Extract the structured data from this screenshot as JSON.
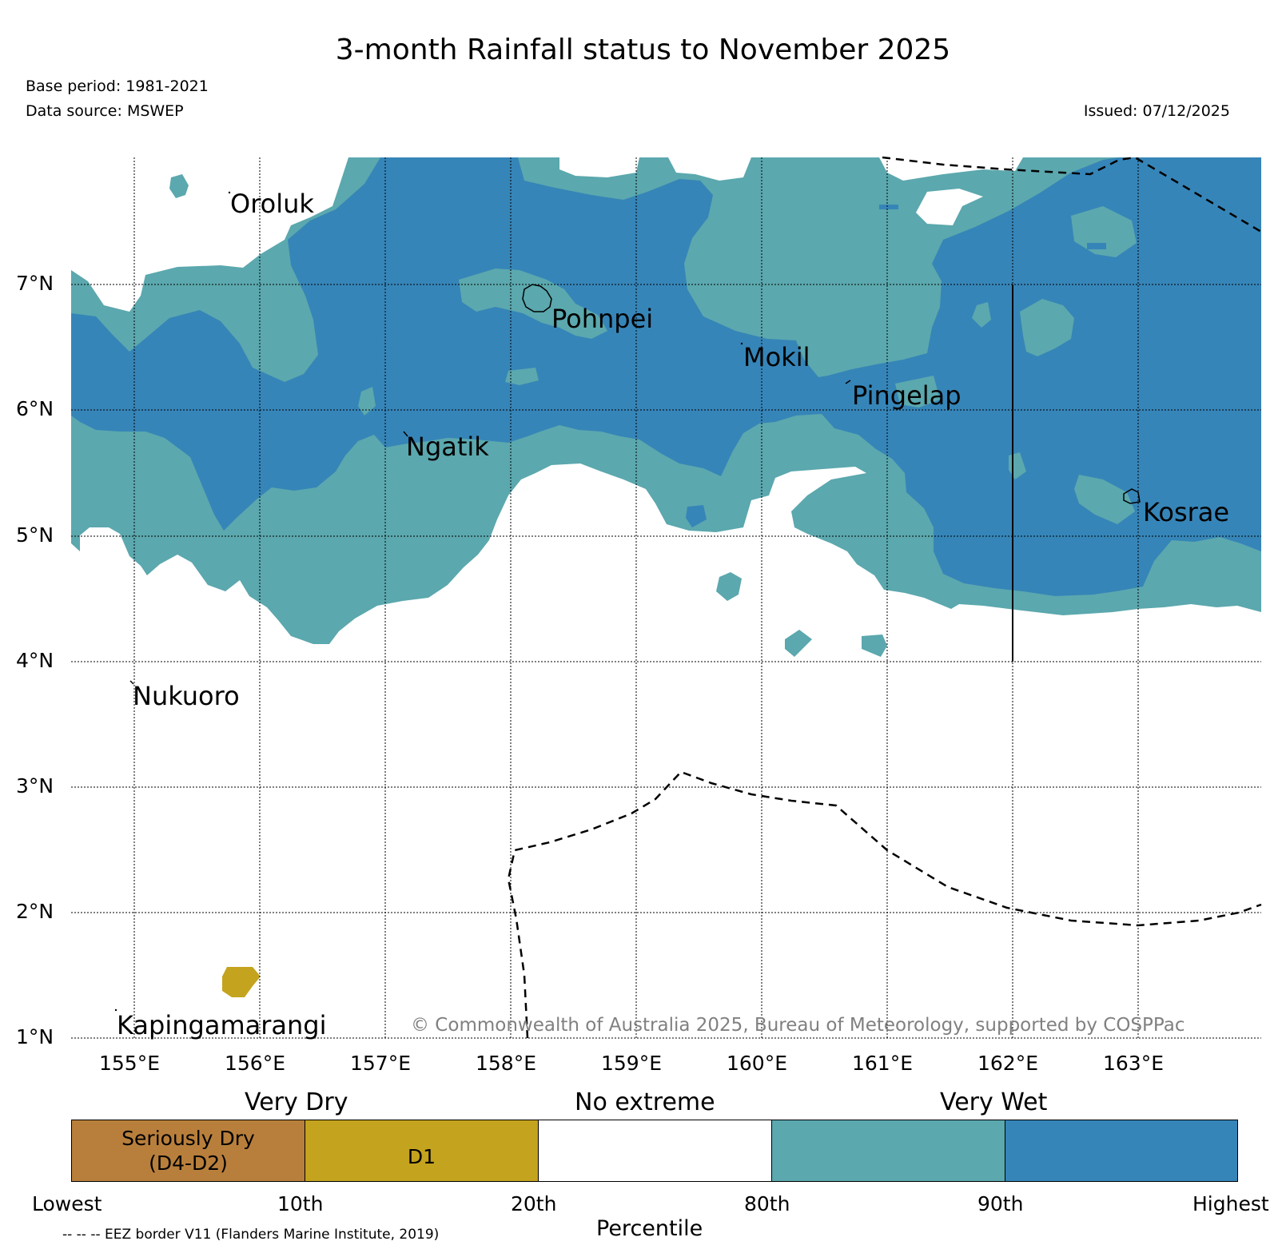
{
  "title": "3-month Rainfall status to November 2025",
  "meta": {
    "base_period": "Base period: 1981-2021",
    "data_source": "Data source: MSWEP",
    "issued": "Issued: 07/12/2025"
  },
  "axes": {
    "lat_labels": [
      "7°N",
      "6°N",
      "5°N",
      "4°N",
      "3°N",
      "2°N",
      "1°N"
    ],
    "lon_labels": [
      "155°E",
      "156°E",
      "157°E",
      "158°E",
      "159°E",
      "160°E",
      "161°E",
      "162°E",
      "163°E"
    ]
  },
  "islands": {
    "oroluk": "Oroluk",
    "pohnpei": "Pohnpei",
    "mokil": "Mokil",
    "pingelap": "Pingelap",
    "ngatik": "Ngatik",
    "kosrae": "Kosrae",
    "nukuoro": "Nukuoro",
    "kapingamarangi": "Kapingamarangi"
  },
  "copyright": "© Commonwealth of Australia 2025, Bureau of Meteorology, supported by COSPPac",
  "colorbar": {
    "headers": {
      "very_dry": "Very Dry",
      "no_extreme": "No extreme",
      "very_wet": "Very Wet"
    },
    "cells": {
      "seriously_dry": "Seriously Dry\n(D4-D2)",
      "d1": "D1"
    },
    "ticks": [
      "Lowest",
      "10th",
      "20th",
      "80th",
      "90th",
      "Highest"
    ],
    "xlabel": "Percentile"
  },
  "legend_eez": "-- -- -- EEZ border V11 (Flanders Marine Institute, 2019)",
  "colors": {
    "seriously_dry": "#b87f3c",
    "d1": "#c4a31e",
    "no_extreme": "#ffffff",
    "very_wet": "#5ba8ae",
    "highest": "#3685b8"
  }
}
